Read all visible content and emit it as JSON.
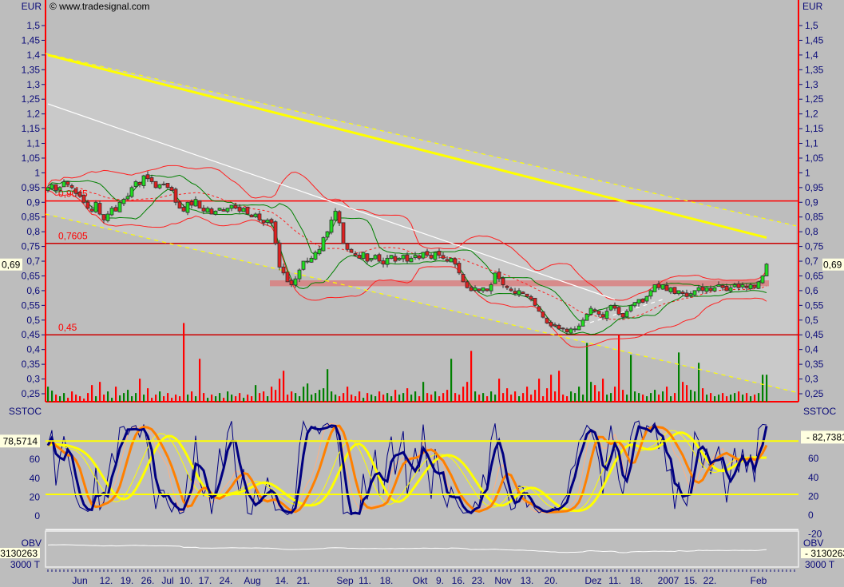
{
  "chart_data": {
    "type": "candlestick",
    "watermark": "© www.tradesignal.com",
    "price_panel": {
      "unit": "EUR",
      "ylim": [
        0.25,
        1.5
      ],
      "tick_labels": [
        "1,5",
        "1,45",
        "1,4",
        "1,35",
        "1,3",
        "1,25",
        "1,2",
        "1,15",
        "1,1",
        "1,05",
        "1",
        "0,95",
        "0,9",
        "0,85",
        "0,8",
        "0,75",
        "0,7",
        "0,65",
        "0,6",
        "0,55",
        "0,5",
        "0,45",
        "0,4",
        "0,35",
        "0,3",
        "0,25"
      ],
      "current_price": "0,69",
      "horizontal_lines": [
        {
          "value": 0.9045,
          "label": "0,9045",
          "color": "#ff0000"
        },
        {
          "value": 0.7605,
          "label": "0,7605",
          "color": "#cc0000"
        },
        {
          "value": 0.45,
          "label": "0,45",
          "color": "#cc0000"
        }
      ],
      "support_zone": {
        "from": 0.615,
        "to": 0.635,
        "color": "#d98080"
      },
      "closes": [
        0.95,
        0.96,
        0.94,
        0.95,
        0.97,
        0.96,
        0.95,
        0.93,
        0.92,
        0.9,
        0.88,
        0.87,
        0.9,
        0.86,
        0.84,
        0.86,
        0.88,
        0.87,
        0.9,
        0.91,
        0.92,
        0.95,
        0.97,
        0.96,
        0.99,
        0.98,
        0.97,
        0.95,
        0.96,
        0.96,
        0.95,
        0.94,
        0.9,
        0.88,
        0.87,
        0.9,
        0.89,
        0.91,
        0.88,
        0.87,
        0.88,
        0.86,
        0.87,
        0.88,
        0.87,
        0.88,
        0.89,
        0.88,
        0.87,
        0.88,
        0.86,
        0.85,
        0.86,
        0.84,
        0.83,
        0.84,
        0.83,
        0.76,
        0.68,
        0.66,
        0.63,
        0.62,
        0.64,
        0.67,
        0.7,
        0.7,
        0.71,
        0.73,
        0.74,
        0.78,
        0.8,
        0.84,
        0.87,
        0.83,
        0.76,
        0.74,
        0.73,
        0.72,
        0.71,
        0.73,
        0.7,
        0.71,
        0.72,
        0.7,
        0.69,
        0.71,
        0.72,
        0.7,
        0.71,
        0.72,
        0.7,
        0.71,
        0.72,
        0.71,
        0.73,
        0.72,
        0.71,
        0.73,
        0.72,
        0.71,
        0.7,
        0.71,
        0.69,
        0.66,
        0.63,
        0.61,
        0.6,
        0.61,
        0.6,
        0.61,
        0.6,
        0.62,
        0.66,
        0.64,
        0.62,
        0.61,
        0.6,
        0.59,
        0.6,
        0.59,
        0.58,
        0.57,
        0.55,
        0.53,
        0.51,
        0.49,
        0.48,
        0.48,
        0.47,
        0.47,
        0.46,
        0.47,
        0.47,
        0.48,
        0.5,
        0.52,
        0.54,
        0.53,
        0.52,
        0.51,
        0.53,
        0.55,
        0.54,
        0.52,
        0.51,
        0.53,
        0.55,
        0.56,
        0.57,
        0.56,
        0.58,
        0.6,
        0.62,
        0.61,
        0.62,
        0.6,
        0.61,
        0.59,
        0.6,
        0.59,
        0.58,
        0.59,
        0.6,
        0.61,
        0.6,
        0.61,
        0.6,
        0.61,
        0.62,
        0.61,
        0.6,
        0.61,
        0.62,
        0.61,
        0.62,
        0.61,
        0.62,
        0.61,
        0.63,
        0.65,
        0.69
      ],
      "volume_relative": [
        20,
        15,
        10,
        8,
        12,
        6,
        14,
        10,
        8,
        5,
        12,
        22,
        8,
        26,
        10,
        14,
        6,
        20,
        9,
        12,
        16,
        8,
        12,
        30,
        10,
        18,
        6,
        10,
        14,
        8,
        12,
        6,
        10,
        8,
        100,
        10,
        14,
        8,
        55,
        12,
        6,
        10,
        8,
        12,
        6,
        14,
        10,
        8,
        12,
        6,
        10,
        8,
        22,
        12,
        14,
        8,
        20,
        16,
        30,
        40,
        10,
        14,
        12,
        8,
        20,
        24,
        10,
        12,
        16,
        18,
        42,
        14,
        10,
        8,
        12,
        20,
        10,
        8,
        14,
        6,
        12,
        10,
        8,
        14,
        10,
        12,
        8,
        16,
        10,
        12,
        18,
        10,
        14,
        8,
        26,
        12,
        10,
        14,
        8,
        12,
        16,
        55,
        12,
        10,
        20,
        26,
        65,
        14,
        10,
        12,
        8,
        14,
        10,
        30,
        12,
        18,
        10,
        14,
        8,
        12,
        20,
        10,
        16,
        30,
        8,
        18,
        35,
        14,
        40,
        10,
        8,
        14,
        12,
        20,
        10,
        75,
        26,
        22,
        14,
        30,
        10,
        12,
        20,
        85,
        16,
        10,
        60,
        14,
        12,
        10,
        8,
        12,
        16,
        10,
        14,
        20,
        8,
        12,
        63,
        26,
        22,
        16,
        14,
        50,
        18,
        10,
        12,
        8,
        10,
        12,
        8,
        10,
        12,
        14,
        10,
        12,
        8,
        10,
        12,
        35,
        35
      ],
      "trendlines": [
        {
          "name": "downtrend",
          "color": "#ffffff",
          "from": [
            0,
            1.234
          ],
          "to": [
            142,
            0.57
          ]
        },
        {
          "name": "uptrend",
          "color": "#ffffff",
          "dashed": true,
          "from": [
            132,
            0.475
          ],
          "to": [
            154,
            0.57
          ]
        },
        {
          "name": "channel-mid",
          "color": "#ffff00",
          "from": [
            0,
            1.4
          ],
          "to": [
            180,
            0.78
          ]
        },
        {
          "name": "channel-upper",
          "color": "#ffff00",
          "dashed": true,
          "from": [
            -0.6,
            1.405
          ],
          "to": [
            187.4,
            0.82
          ]
        },
        {
          "name": "channel-lower",
          "color": "#ffff00",
          "dashed": true,
          "from": [
            -0.6,
            0.86
          ],
          "to": [
            187.4,
            0.255
          ]
        }
      ]
    },
    "x_axis": {
      "tick_labels": [
        "Jun",
        "12.",
        "19.",
        "26.",
        "Jul",
        "10.",
        "17.",
        "24.",
        "Aug",
        "14.",
        "21.",
        "Sep",
        "11.",
        "18.",
        "Okt",
        "9.",
        "16.",
        "23.",
        "Nov",
        "13.",
        "20.",
        "Dez",
        "11.",
        "18.",
        "2007",
        "15.",
        "22.",
        "Feb"
      ]
    },
    "stochastic_panel": {
      "title": "SSTOC",
      "ylim": [
        -20,
        100
      ],
      "tick_labels": [
        "60",
        "40",
        "20",
        "0"
      ],
      "right_tick_labels": [
        "60",
        "40",
        "20",
        "0",
        "-20"
      ],
      "left_value": "78,5714",
      "right_value": "82,7381",
      "levels": [
        78.5714,
        22
      ],
      "colors": {
        "fast": "#000080",
        "slow": "#ff8000",
        "signal": "#ffff00"
      }
    },
    "obv_panel": {
      "title": "OBV",
      "value": "3130263",
      "tick_label": "3000 T",
      "color": "#ffffff"
    }
  }
}
